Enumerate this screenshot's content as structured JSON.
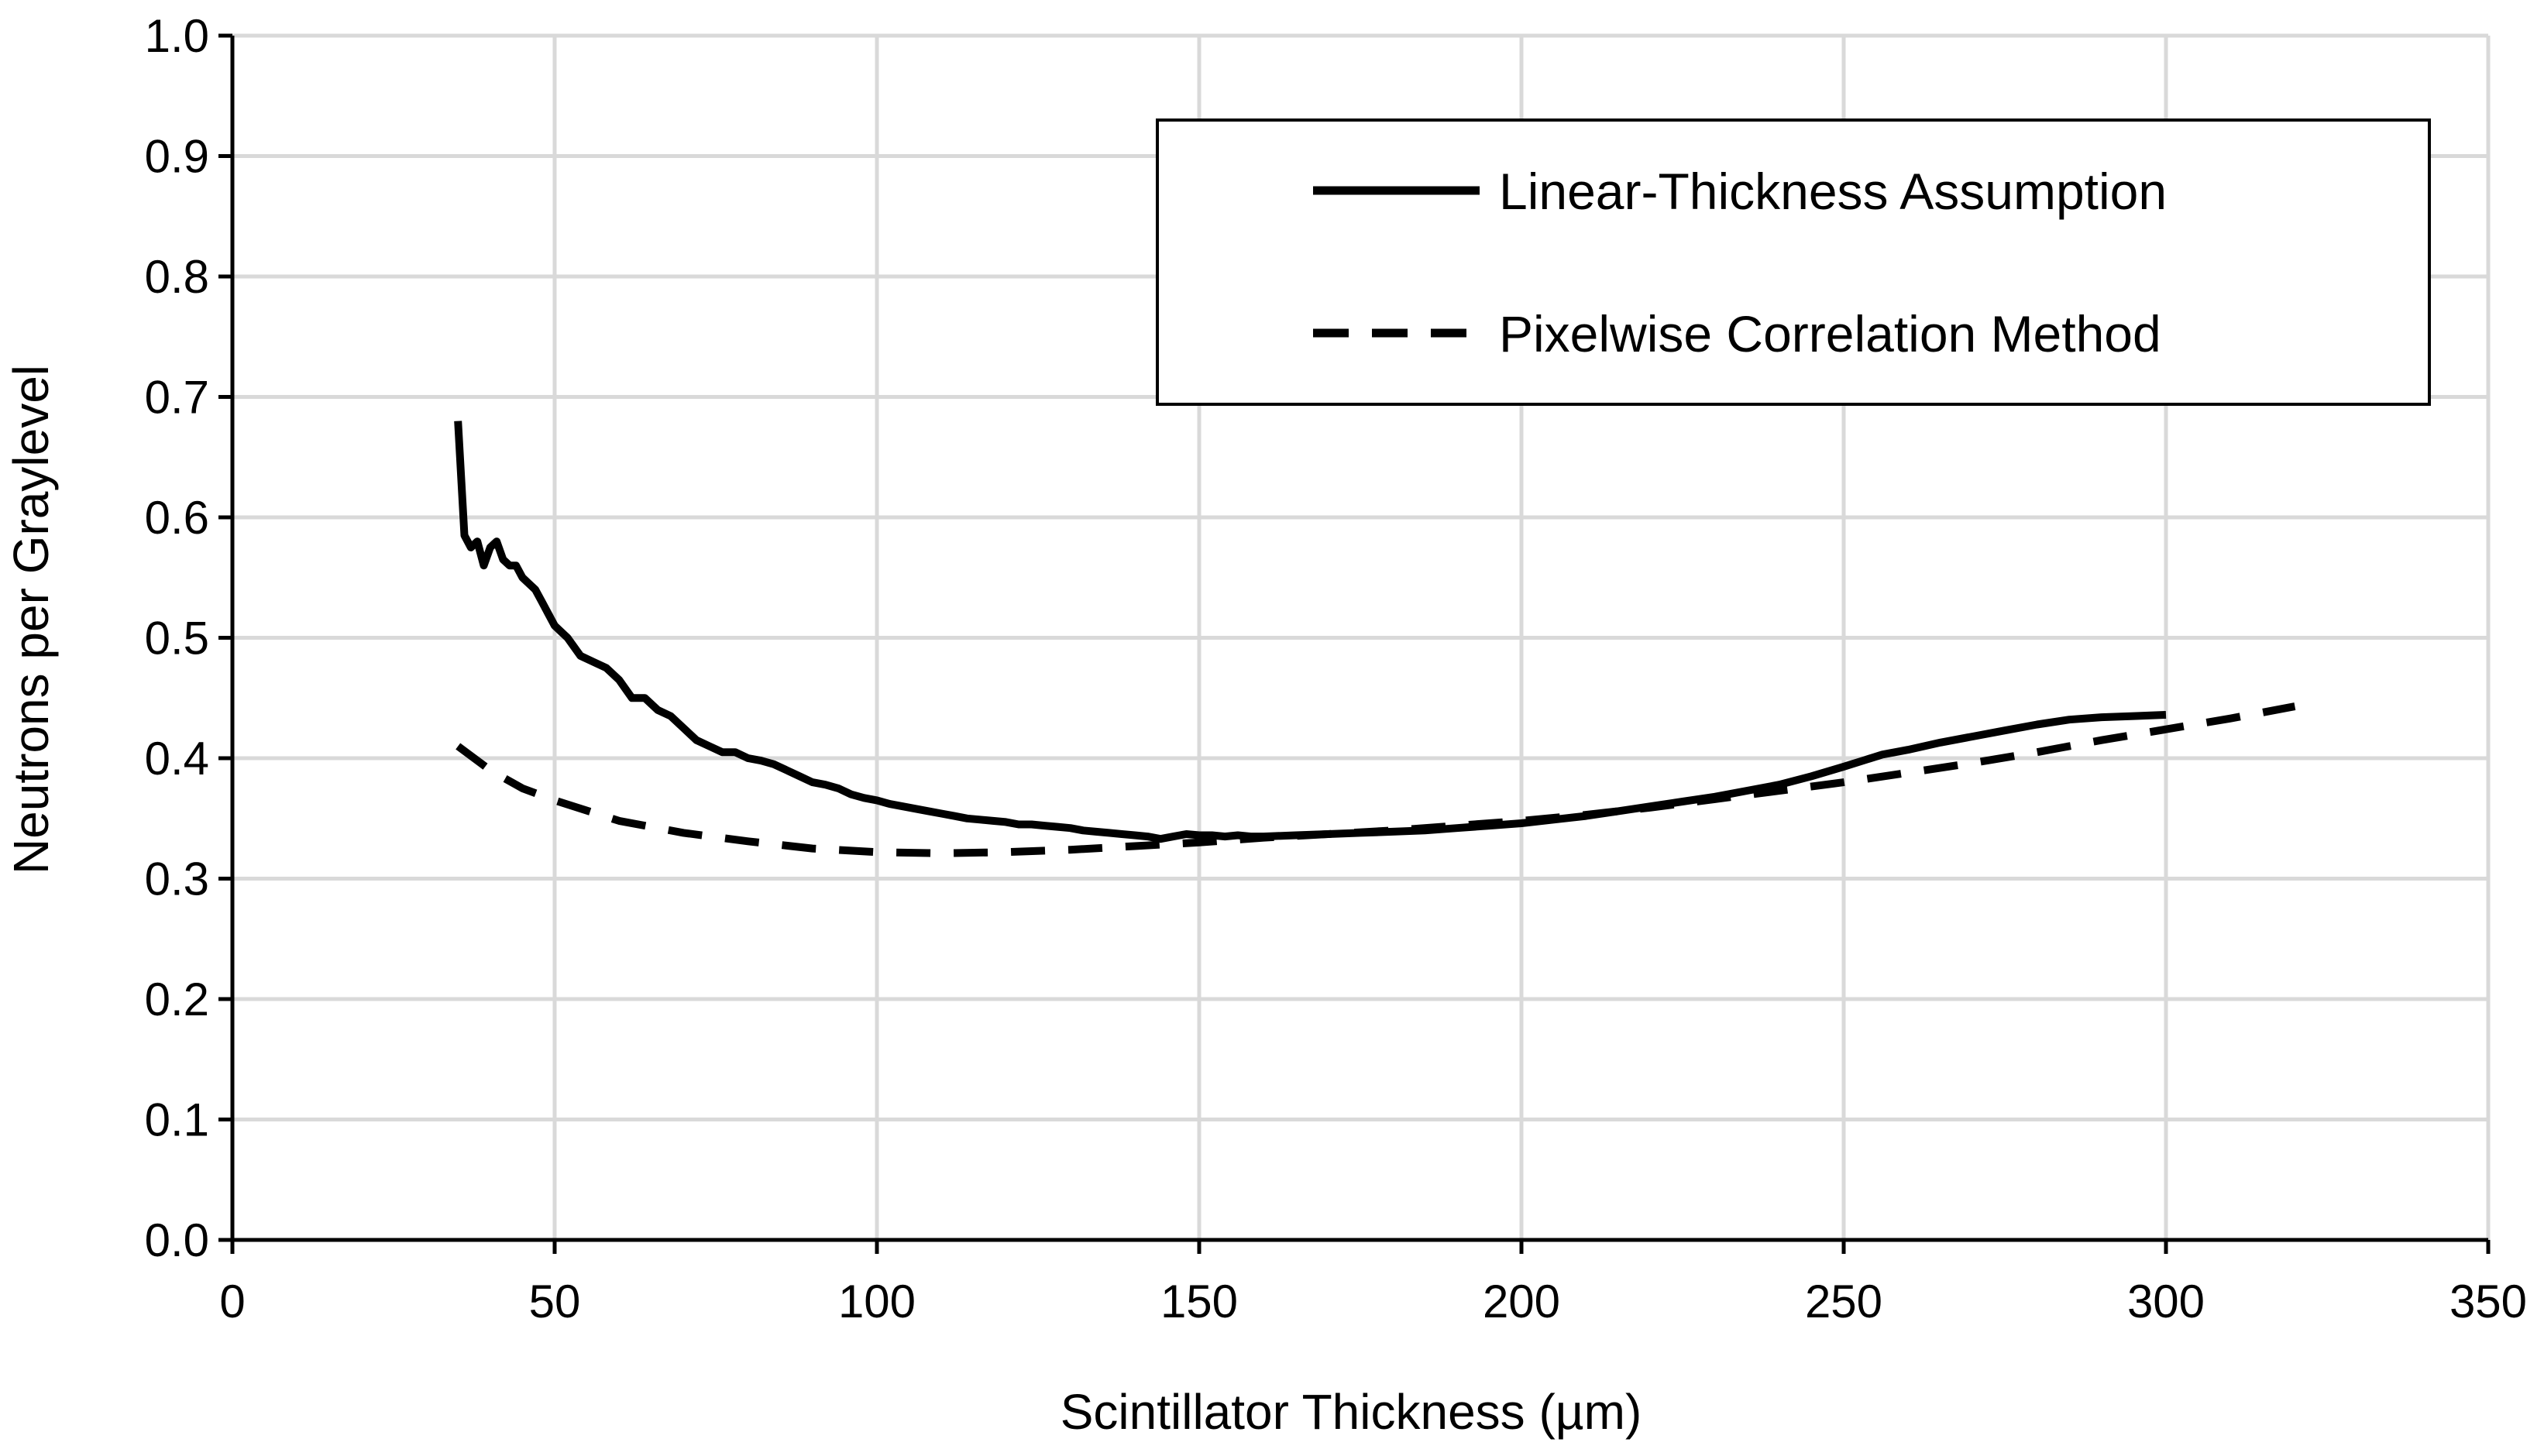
{
  "chart_data": {
    "type": "line",
    "title": "",
    "xlabel": "Scintillator Thickness (µm)",
    "ylabel": "Neutrons per Graylevel",
    "xlim": [
      0,
      350
    ],
    "ylim": [
      0,
      1.0
    ],
    "x_ticks": [
      0,
      50,
      100,
      150,
      200,
      250,
      300,
      350
    ],
    "y_ticks": [
      0.0,
      0.1,
      0.2,
      0.3,
      0.4,
      0.5,
      0.6,
      0.7,
      0.8,
      0.9,
      1.0
    ],
    "x_tick_labels": [
      "0",
      "50",
      "100",
      "150",
      "200",
      "250",
      "300",
      "350"
    ],
    "y_tick_labels": [
      "0.0",
      "0.1",
      "0.2",
      "0.3",
      "0.4",
      "0.5",
      "0.6",
      "0.7",
      "0.8",
      "0.9",
      "1.0"
    ],
    "grid": true,
    "legend_position": "top-right",
    "series": [
      {
        "name": "Linear-Thickness Assumption",
        "style": "solid",
        "color": "#000000",
        "x": [
          35,
          36,
          37,
          38,
          39,
          40,
          41,
          42,
          43,
          44,
          45,
          46,
          47,
          48,
          49,
          50,
          52,
          54,
          56,
          58,
          60,
          62,
          64,
          66,
          68,
          70,
          72,
          74,
          76,
          78,
          80,
          82,
          84,
          86,
          88,
          90,
          92,
          94,
          96,
          98,
          100,
          102,
          104,
          106,
          108,
          110,
          112,
          114,
          116,
          118,
          120,
          122,
          124,
          126,
          128,
          130,
          132,
          134,
          136,
          138,
          140,
          142,
          144,
          146,
          148,
          150,
          152,
          154,
          156,
          158,
          160,
          165,
          170,
          175,
          180,
          185,
          190,
          195,
          200,
          205,
          210,
          215,
          220,
          225,
          230,
          235,
          240,
          245,
          250,
          253,
          256,
          260,
          265,
          270,
          275,
          280,
          285,
          290,
          295,
          300
        ],
        "y": [
          0.68,
          0.585,
          0.575,
          0.58,
          0.56,
          0.575,
          0.58,
          0.565,
          0.56,
          0.56,
          0.55,
          0.545,
          0.54,
          0.53,
          0.52,
          0.51,
          0.5,
          0.485,
          0.48,
          0.475,
          0.465,
          0.45,
          0.45,
          0.44,
          0.435,
          0.425,
          0.415,
          0.41,
          0.405,
          0.405,
          0.4,
          0.398,
          0.395,
          0.39,
          0.385,
          0.38,
          0.378,
          0.375,
          0.37,
          0.367,
          0.365,
          0.362,
          0.36,
          0.358,
          0.356,
          0.354,
          0.352,
          0.35,
          0.349,
          0.348,
          0.347,
          0.345,
          0.345,
          0.344,
          0.343,
          0.342,
          0.34,
          0.339,
          0.338,
          0.337,
          0.336,
          0.335,
          0.333,
          0.335,
          0.337,
          0.336,
          0.336,
          0.335,
          0.336,
          0.335,
          0.335,
          0.336,
          0.337,
          0.338,
          0.339,
          0.34,
          0.342,
          0.344,
          0.346,
          0.349,
          0.352,
          0.356,
          0.36,
          0.364,
          0.368,
          0.373,
          0.378,
          0.385,
          0.393,
          0.398,
          0.403,
          0.407,
          0.413,
          0.418,
          0.423,
          0.428,
          0.432,
          0.434,
          0.435,
          0.436
        ]
      },
      {
        "name": "Pixelwise Correlation Method",
        "style": "dashed",
        "color": "#000000",
        "x": [
          35,
          40,
          45,
          50,
          60,
          70,
          80,
          90,
          100,
          110,
          120,
          130,
          140,
          150,
          160,
          170,
          180,
          190,
          200,
          210,
          220,
          230,
          240,
          250,
          260,
          270,
          280,
          290,
          300,
          310,
          320
        ],
        "y": [
          0.41,
          0.39,
          0.375,
          0.365,
          0.348,
          0.338,
          0.331,
          0.325,
          0.322,
          0.321,
          0.322,
          0.324,
          0.327,
          0.33,
          0.334,
          0.337,
          0.34,
          0.344,
          0.348,
          0.353,
          0.359,
          0.366,
          0.373,
          0.38,
          0.388,
          0.396,
          0.405,
          0.415,
          0.424,
          0.433,
          0.443
        ]
      }
    ]
  }
}
